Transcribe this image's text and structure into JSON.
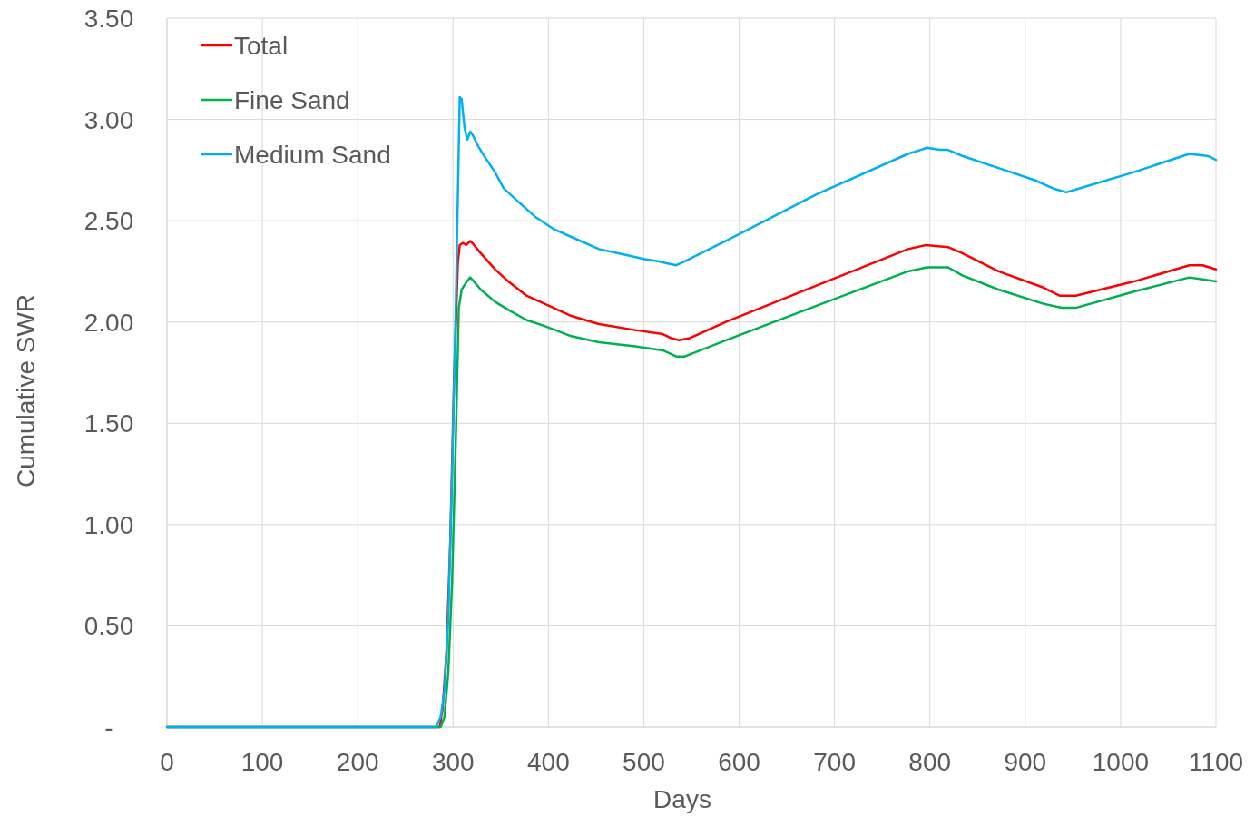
{
  "chart_data": {
    "type": "line",
    "xlabel": "Days",
    "ylabel": "Cumulative SWR",
    "xlim": [
      0,
      1100
    ],
    "xticks": [
      0,
      100,
      200,
      300,
      400,
      500,
      600,
      700,
      800,
      900,
      1000,
      1100
    ],
    "ylim": [
      0,
      3.5
    ],
    "yticks": [
      {
        "value": 0,
        "label": "-"
      },
      {
        "value": 0.5,
        "label": "0.50"
      },
      {
        "value": 1,
        "label": "1.00"
      },
      {
        "value": 1.5,
        "label": "1.50"
      },
      {
        "value": 2,
        "label": "2.00"
      },
      {
        "value": 2.5,
        "label": "2.50"
      },
      {
        "value": 3,
        "label": "3.00"
      },
      {
        "value": 3.5,
        "label": "3.50"
      }
    ],
    "grid": true,
    "legend": "top left",
    "marker": "none",
    "line_style": "solid",
    "series": [
      {
        "name": "Total",
        "color": "#ff0000",
        "x": [
          0,
          286,
          289,
          293,
          297,
          301,
          305,
          307,
          310,
          314,
          318,
          322,
          329,
          344,
          358,
          377,
          396,
          424,
          453,
          491,
          520,
          529,
          537,
          548,
          586,
          681,
          777,
          796,
          819,
          834,
          872,
          919,
          936,
          953,
          1014,
          1072,
          1086,
          1100
        ],
        "values": [
          0,
          0,
          0.09,
          0.36,
          0.9,
          1.71,
          2.29,
          2.38,
          2.39,
          2.38,
          2.4,
          2.38,
          2.34,
          2.26,
          2.2,
          2.13,
          2.09,
          2.03,
          1.99,
          1.96,
          1.94,
          1.92,
          1.91,
          1.92,
          2.0,
          2.18,
          2.36,
          2.38,
          2.37,
          2.34,
          2.25,
          2.17,
          2.13,
          2.13,
          2.2,
          2.28,
          2.28,
          2.26
        ]
      },
      {
        "name": "Fine Sand",
        "color": "#00b050",
        "x": [
          0,
          287,
          291,
          295,
          299,
          303,
          306,
          309,
          313,
          318,
          322,
          329,
          344,
          358,
          377,
          396,
          424,
          453,
          491,
          520,
          534,
          543,
          586,
          681,
          777,
          797,
          819,
          834,
          872,
          919,
          938,
          953,
          1014,
          1072,
          1086,
          1100
        ],
        "values": [
          0,
          0,
          0.05,
          0.27,
          0.72,
          1.44,
          2.07,
          2.16,
          2.19,
          2.22,
          2.2,
          2.16,
          2.1,
          2.06,
          2.01,
          1.98,
          1.93,
          1.9,
          1.88,
          1.86,
          1.83,
          1.83,
          1.91,
          2.08,
          2.25,
          2.27,
          2.27,
          2.23,
          2.16,
          2.09,
          2.07,
          2.07,
          2.15,
          2.22,
          2.21,
          2.2
        ]
      },
      {
        "name": "Medium Sand",
        "color": "#00b0f0",
        "x": [
          0,
          282,
          287,
          291,
          295,
          299,
          303,
          306,
          307,
          309,
          312,
          315,
          318,
          321,
          326,
          334,
          344,
          353,
          367,
          386,
          405,
          424,
          453,
          482,
          501,
          515,
          524,
          534,
          543,
          586,
          681,
          777,
          797,
          810,
          819,
          834,
          872,
          910,
          929,
          943,
          957,
          1014,
          1072,
          1091,
          1100
        ],
        "values": [
          0,
          0,
          0.05,
          0.18,
          0.54,
          1.26,
          2.11,
          2.87,
          3.11,
          3.1,
          2.96,
          2.9,
          2.94,
          2.92,
          2.87,
          2.81,
          2.74,
          2.66,
          2.6,
          2.52,
          2.46,
          2.42,
          2.36,
          2.33,
          2.31,
          2.3,
          2.29,
          2.28,
          2.3,
          2.4,
          2.63,
          2.83,
          2.86,
          2.85,
          2.85,
          2.82,
          2.76,
          2.7,
          2.66,
          2.64,
          2.66,
          2.74,
          2.83,
          2.82,
          2.8
        ]
      }
    ]
  }
}
